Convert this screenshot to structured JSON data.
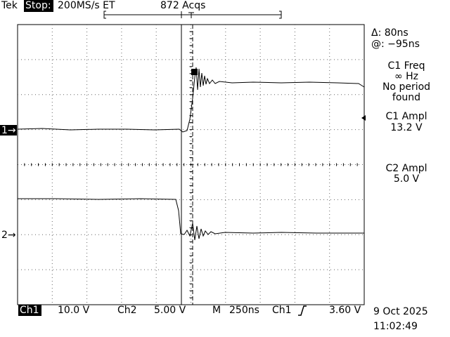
{
  "header": {
    "brand": "Tek",
    "status": "Stop:",
    "sample_rate": "200MS/s ET",
    "acquisitions": "872 Acqs"
  },
  "readouts": {
    "delta": "Δ: 80ns",
    "at": "@: −95ns",
    "c1_freq_label": "C1 Freq",
    "c1_freq_value": "∞ Hz",
    "c1_freq_note": [
      "No period",
      "found"
    ],
    "c1_ampl_label": "C1 Ampl",
    "c1_ampl_value": "13.2 V",
    "c2_ampl_label": "C2 Ampl",
    "c2_ampl_value": "5.0 V"
  },
  "markers": {
    "ch1": "1→",
    "ch2": "2→"
  },
  "footer": {
    "ch1_label": "Ch1",
    "ch1_scale": "10.0 V",
    "ch2_label": "Ch2",
    "ch2_scale": "5.00 V",
    "timebase_label": "M",
    "timebase": "250ns",
    "trigger_source": "Ch1",
    "trigger_level": "3.60 V",
    "date": "9 Oct 2025",
    "time": "11:02:49"
  }
}
